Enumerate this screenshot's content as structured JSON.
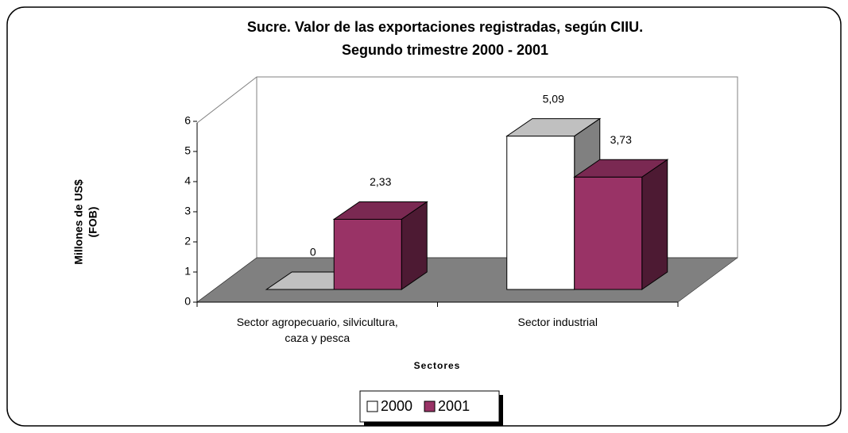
{
  "chart_data": {
    "type": "bar3d",
    "title": [
      "Sucre.  Valor de las exportaciones registradas, según CIIU.",
      "Segundo trimestre 2000 - 2001"
    ],
    "ylabel": [
      "Millones de US$",
      "(FOB)"
    ],
    "xlabel": "Sectores",
    "categories": [
      "Sector agropecuario, silvicultura, caza y pesca",
      "Sector industrial"
    ],
    "series": [
      {
        "name": "2000",
        "color": "#ffffff",
        "values": [
          0,
          5.09
        ],
        "value_labels": [
          "0",
          "5,09"
        ]
      },
      {
        "name": "2001",
        "color": "#993366",
        "values": [
          2.33,
          3.73
        ],
        "value_labels": [
          "2,33",
          "3,73"
        ]
      }
    ],
    "ylim": [
      0,
      6
    ],
    "yticks": [
      0,
      1,
      2,
      3,
      4,
      5,
      6
    ],
    "legend": "bottom"
  }
}
